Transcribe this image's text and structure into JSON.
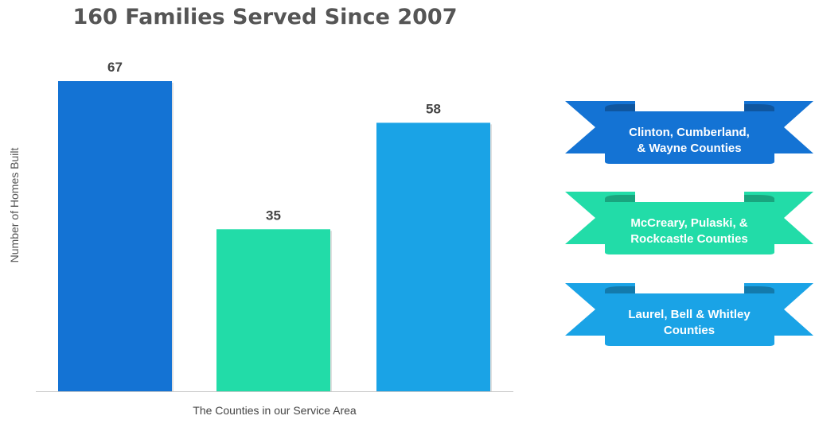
{
  "chart_data": {
    "type": "bar",
    "title": "160 Families Served Since 2007",
    "xlabel": "The Counties in our Service Area",
    "ylabel": "Number of Homes Built",
    "categories": [
      "Clinton, Cumberland, & Wayne Counties",
      "McCreary, Pulaski, & Rockcastle Counties",
      "Laurel, Bell & Whitley Counties"
    ],
    "values": [
      67,
      35,
      58
    ],
    "data_labels": [
      "67",
      "35",
      "58"
    ],
    "colors": [
      "#1473D4",
      "#22DCA8",
      "#1AA3E6"
    ],
    "ylim": [
      0,
      67
    ],
    "grid": false,
    "legend": {
      "placement": "right",
      "style": "ribbon banners",
      "entries": [
        {
          "line1": "Clinton, Cumberland,",
          "line2": "& Wayne Counties"
        },
        {
          "line1": "McCreary, Pulaski, &",
          "line2": "Rockcastle Counties"
        },
        {
          "line1": "Laurel, Bell & Whitley",
          "line2": "Counties"
        }
      ]
    }
  }
}
